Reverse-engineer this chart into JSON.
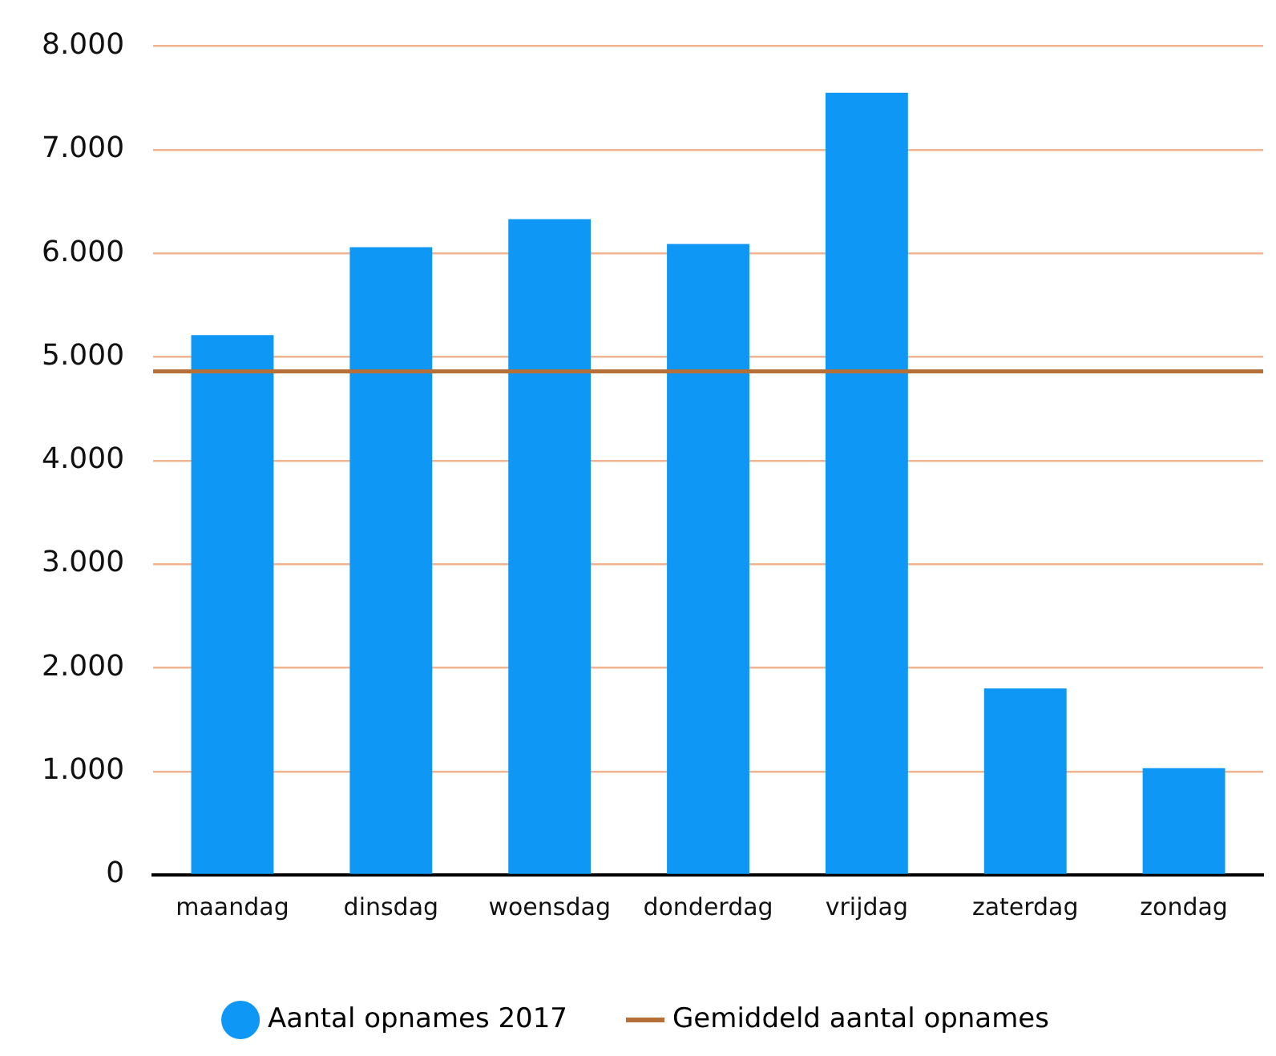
{
  "chart_data": {
    "type": "bar",
    "categories": [
      "maandag",
      "dinsdag",
      "woensdag",
      "donderdag",
      "vrijdag",
      "zaterdag",
      "zondag"
    ],
    "series": [
      {
        "name": "Aantal opnames 2017",
        "color": "#0f97f5",
        "values": [
          5210,
          6060,
          6330,
          6090,
          7550,
          1800,
          1030
        ]
      }
    ],
    "ylim": [
      0,
      8000
    ],
    "yticks": [
      {
        "value": 0,
        "label": "0"
      },
      {
        "value": 1000,
        "label": "1.000"
      },
      {
        "value": 2000,
        "label": "2.000"
      },
      {
        "value": 3000,
        "label": "3.000"
      },
      {
        "value": 4000,
        "label": "4.000"
      },
      {
        "value": 5000,
        "label": "5.000"
      },
      {
        "value": 6000,
        "label": "6.000"
      },
      {
        "value": 7000,
        "label": "7.000"
      },
      {
        "value": 8000,
        "label": "8.000"
      }
    ],
    "ref_lines": [
      {
        "axis": "y",
        "value": 4860,
        "label": "Gemiddeld aantal opnames",
        "color": "#b5703a"
      }
    ],
    "grid": "y",
    "legend": "bottom"
  }
}
